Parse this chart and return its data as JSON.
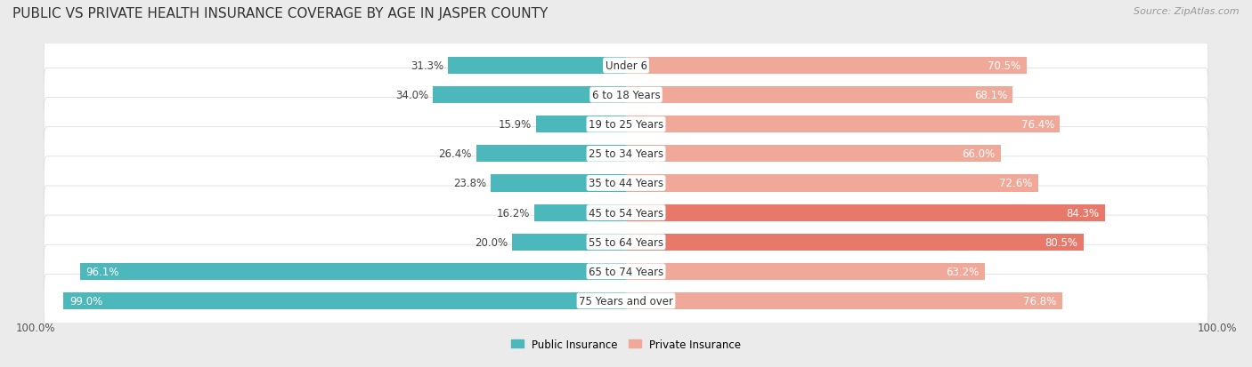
{
  "title": "PUBLIC VS PRIVATE HEALTH INSURANCE COVERAGE BY AGE IN JASPER COUNTY",
  "source": "Source: ZipAtlas.com",
  "categories": [
    "Under 6",
    "6 to 18 Years",
    "19 to 25 Years",
    "25 to 34 Years",
    "35 to 44 Years",
    "45 to 54 Years",
    "55 to 64 Years",
    "65 to 74 Years",
    "75 Years and over"
  ],
  "public_values": [
    31.3,
    34.0,
    15.9,
    26.4,
    23.8,
    16.2,
    20.0,
    96.1,
    99.0
  ],
  "private_values": [
    70.5,
    68.1,
    76.4,
    66.0,
    72.6,
    84.3,
    80.5,
    63.2,
    76.8
  ],
  "public_color": "#4db8bc",
  "private_color": "#e8796a",
  "private_color_light": "#f0a899",
  "bg_color": "#ebebeb",
  "row_bg_color": "#f5f5f5",
  "row_border_color": "#d8d8d8",
  "axis_label": "100.0%",
  "legend_public": "Public Insurance",
  "legend_private": "Private Insurance",
  "title_fontsize": 11,
  "source_fontsize": 8,
  "bar_label_fontsize": 8.5,
  "category_fontsize": 8.5,
  "max_val": 100
}
